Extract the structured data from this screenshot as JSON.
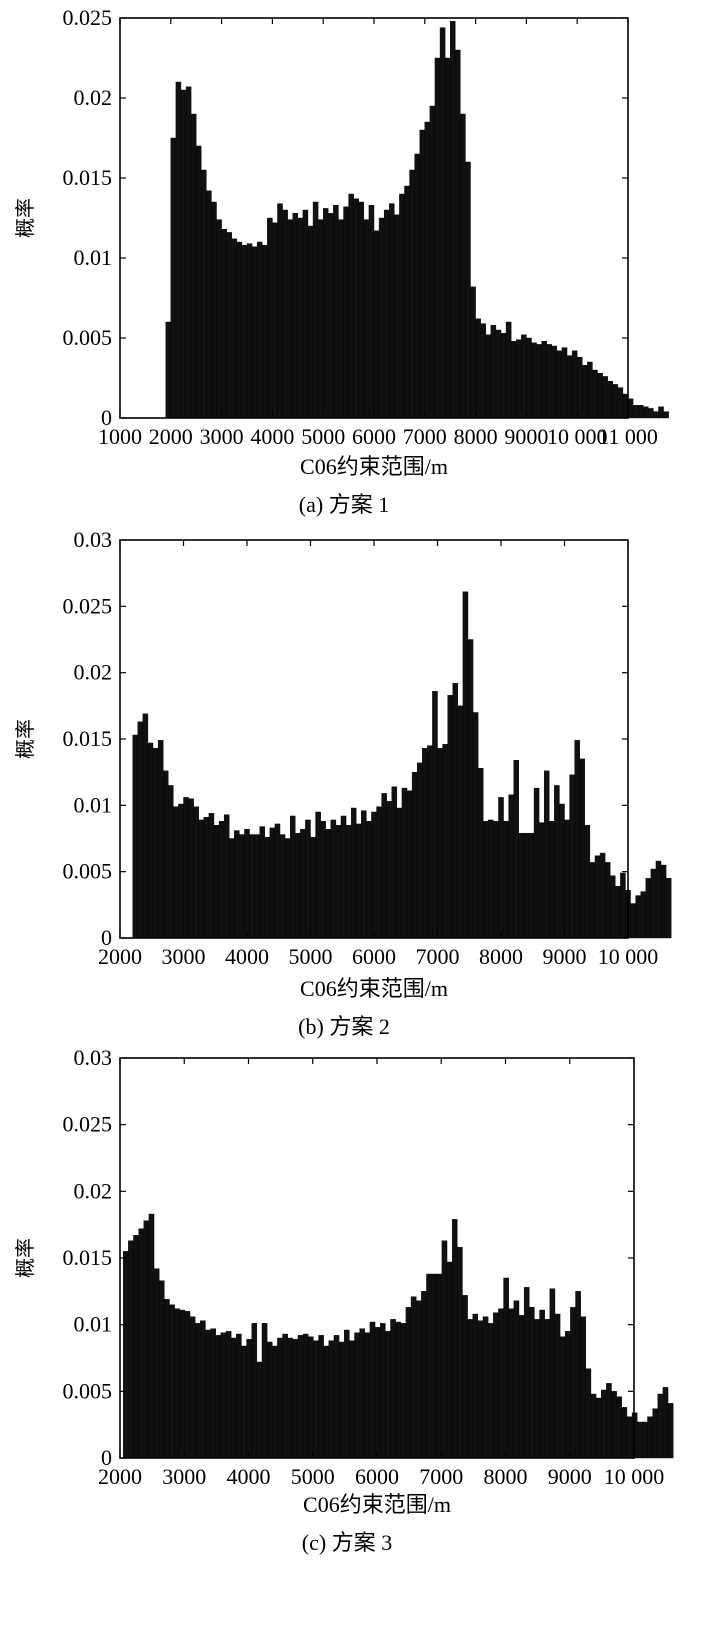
{
  "chart_data": [
    {
      "type": "bar",
      "caption": "(a) 方案 1",
      "xlabel": "C06约束范围/m",
      "ylabel": "概率",
      "xlim": [
        1000,
        11000
      ],
      "ylim": [
        0,
        0.025
      ],
      "x_tick_labels": [
        "1000",
        "2000",
        "3000",
        "4000",
        "5000",
        "6000",
        "7000",
        "8000",
        "9000",
        "10 000",
        "11 000"
      ],
      "x_tick_values": [
        1000,
        2000,
        3000,
        4000,
        5000,
        6000,
        7000,
        8000,
        9000,
        10000,
        11000
      ],
      "y_tick_labels": [
        "0",
        "0.005",
        "0.01",
        "0.015",
        "0.02",
        "0.025"
      ],
      "y_tick_values": [
        0,
        0.005,
        0.01,
        0.015,
        0.02,
        0.025
      ],
      "bin_start": 1900,
      "bin_width": 100,
      "values": [
        0.006,
        0.0175,
        0.021,
        0.0205,
        0.0207,
        0.019,
        0.017,
        0.0155,
        0.0142,
        0.0135,
        0.0124,
        0.0118,
        0.0116,
        0.0112,
        0.011,
        0.0108,
        0.0109,
        0.0107,
        0.011,
        0.0108,
        0.0125,
        0.0122,
        0.0134,
        0.013,
        0.0124,
        0.0128,
        0.0125,
        0.013,
        0.012,
        0.0135,
        0.0124,
        0.0131,
        0.0128,
        0.0133,
        0.0124,
        0.0132,
        0.014,
        0.0137,
        0.0135,
        0.0124,
        0.0133,
        0.0117,
        0.0125,
        0.013,
        0.0134,
        0.0127,
        0.014,
        0.0145,
        0.0155,
        0.0165,
        0.018,
        0.0185,
        0.0195,
        0.0225,
        0.0244,
        0.0225,
        0.0248,
        0.023,
        0.019,
        0.016,
        0.0082,
        0.0062,
        0.0059,
        0.0052,
        0.0058,
        0.0055,
        0.0053,
        0.006,
        0.0048,
        0.0049,
        0.0052,
        0.005,
        0.0047,
        0.0046,
        0.0048,
        0.0046,
        0.0045,
        0.0042,
        0.0044,
        0.0039,
        0.0042,
        0.0038,
        0.0033,
        0.0035,
        0.003,
        0.0028,
        0.0026,
        0.0023,
        0.0021,
        0.0019,
        0.0015,
        0.0012,
        0.0008,
        0.0008,
        0.0007,
        0.0006,
        0.0004,
        0.0007,
        0.0004
      ]
    },
    {
      "type": "bar",
      "caption": "(b) 方案 2",
      "xlabel": "C06约束范围/m",
      "ylabel": "概率",
      "xlim": [
        2000,
        10000
      ],
      "ylim": [
        0,
        0.03
      ],
      "x_tick_labels": [
        "2000",
        "3000",
        "4000",
        "5000",
        "6000",
        "7000",
        "8000",
        "9000",
        "10 000"
      ],
      "x_tick_values": [
        2000,
        3000,
        4000,
        5000,
        6000,
        7000,
        8000,
        9000,
        10000
      ],
      "y_tick_labels": [
        "0",
        "0.005",
        "0.01",
        "0.015",
        "0.02",
        "0.025",
        "0.03"
      ],
      "y_tick_values": [
        0,
        0.005,
        0.01,
        0.015,
        0.02,
        0.025,
        0.03
      ],
      "bin_start": 2200,
      "bin_width": 80,
      "values": [
        0.0153,
        0.0163,
        0.0169,
        0.0147,
        0.0143,
        0.0149,
        0.0126,
        0.0115,
        0.0099,
        0.0101,
        0.0106,
        0.0105,
        0.0099,
        0.0089,
        0.0091,
        0.0094,
        0.0085,
        0.0088,
        0.0093,
        0.0075,
        0.0081,
        0.0078,
        0.0082,
        0.0078,
        0.0078,
        0.0084,
        0.0076,
        0.0083,
        0.0086,
        0.0078,
        0.0075,
        0.0092,
        0.0079,
        0.0082,
        0.0089,
        0.0076,
        0.0095,
        0.0088,
        0.0082,
        0.0089,
        0.0085,
        0.0092,
        0.0085,
        0.0098,
        0.0086,
        0.0096,
        0.0088,
        0.0095,
        0.0099,
        0.0109,
        0.0103,
        0.0114,
        0.0098,
        0.0113,
        0.0111,
        0.0125,
        0.0132,
        0.0143,
        0.0145,
        0.0186,
        0.0143,
        0.0146,
        0.0183,
        0.0192,
        0.0175,
        0.0261,
        0.0225,
        0.017,
        0.0128,
        0.0088,
        0.0089,
        0.0088,
        0.0106,
        0.0088,
        0.0108,
        0.0134,
        0.0079,
        0.0079,
        0.0079,
        0.0113,
        0.0087,
        0.0126,
        0.0088,
        0.0115,
        0.0101,
        0.0089,
        0.0123,
        0.0149,
        0.0135,
        0.0085,
        0.0057,
        0.0062,
        0.0064,
        0.0057,
        0.0047,
        0.0039,
        0.0049,
        0.0036,
        0.0026,
        0.0032,
        0.0035,
        0.0045,
        0.0052,
        0.0058,
        0.0055,
        0.0045
      ]
    },
    {
      "type": "bar",
      "caption": "(c) 方案 3",
      "xlabel": "C06约束范围/m",
      "ylabel": "概率",
      "xlim": [
        2000,
        10000
      ],
      "ylim": [
        0,
        0.03
      ],
      "x_tick_labels": [
        "2000",
        "3000",
        "4000",
        "5000",
        "6000",
        "7000",
        "8000",
        "9000",
        "10 000"
      ],
      "x_tick_values": [
        2000,
        3000,
        4000,
        5000,
        6000,
        7000,
        8000,
        9000,
        10000
      ],
      "y_tick_labels": [
        "0",
        "0.005",
        "0.01",
        "0.015",
        "0.02",
        "0.025",
        "0.03"
      ],
      "y_tick_values": [
        0,
        0.005,
        0.01,
        0.015,
        0.02,
        0.025,
        0.03
      ],
      "bin_start": 2050,
      "bin_width": 80,
      "values": [
        0.0155,
        0.0163,
        0.0167,
        0.0172,
        0.0178,
        0.0183,
        0.0142,
        0.0133,
        0.0119,
        0.0115,
        0.0112,
        0.0111,
        0.011,
        0.0106,
        0.0101,
        0.0103,
        0.0096,
        0.0097,
        0.0092,
        0.0094,
        0.0095,
        0.009,
        0.0093,
        0.0084,
        0.0089,
        0.0101,
        0.0072,
        0.0101,
        0.0087,
        0.0084,
        0.009,
        0.0093,
        0.009,
        0.0089,
        0.0092,
        0.0093,
        0.0091,
        0.0088,
        0.0092,
        0.0084,
        0.0088,
        0.0092,
        0.0087,
        0.0096,
        0.0088,
        0.0094,
        0.0097,
        0.0094,
        0.0102,
        0.0098,
        0.0101,
        0.0095,
        0.0104,
        0.0102,
        0.0101,
        0.0113,
        0.0121,
        0.0118,
        0.0125,
        0.0138,
        0.0138,
        0.0138,
        0.0163,
        0.0147,
        0.0179,
        0.0158,
        0.0122,
        0.0104,
        0.0108,
        0.0103,
        0.0106,
        0.0101,
        0.0109,
        0.0112,
        0.0135,
        0.0112,
        0.0118,
        0.0107,
        0.0128,
        0.0113,
        0.0104,
        0.0111,
        0.0104,
        0.0127,
        0.0108,
        0.0091,
        0.0095,
        0.0113,
        0.0125,
        0.0106,
        0.0067,
        0.0048,
        0.0045,
        0.0051,
        0.0056,
        0.005,
        0.0046,
        0.0038,
        0.0031,
        0.0034,
        0.0027,
        0.0027,
        0.0031,
        0.0037,
        0.0048,
        0.0053,
        0.0041
      ]
    }
  ]
}
